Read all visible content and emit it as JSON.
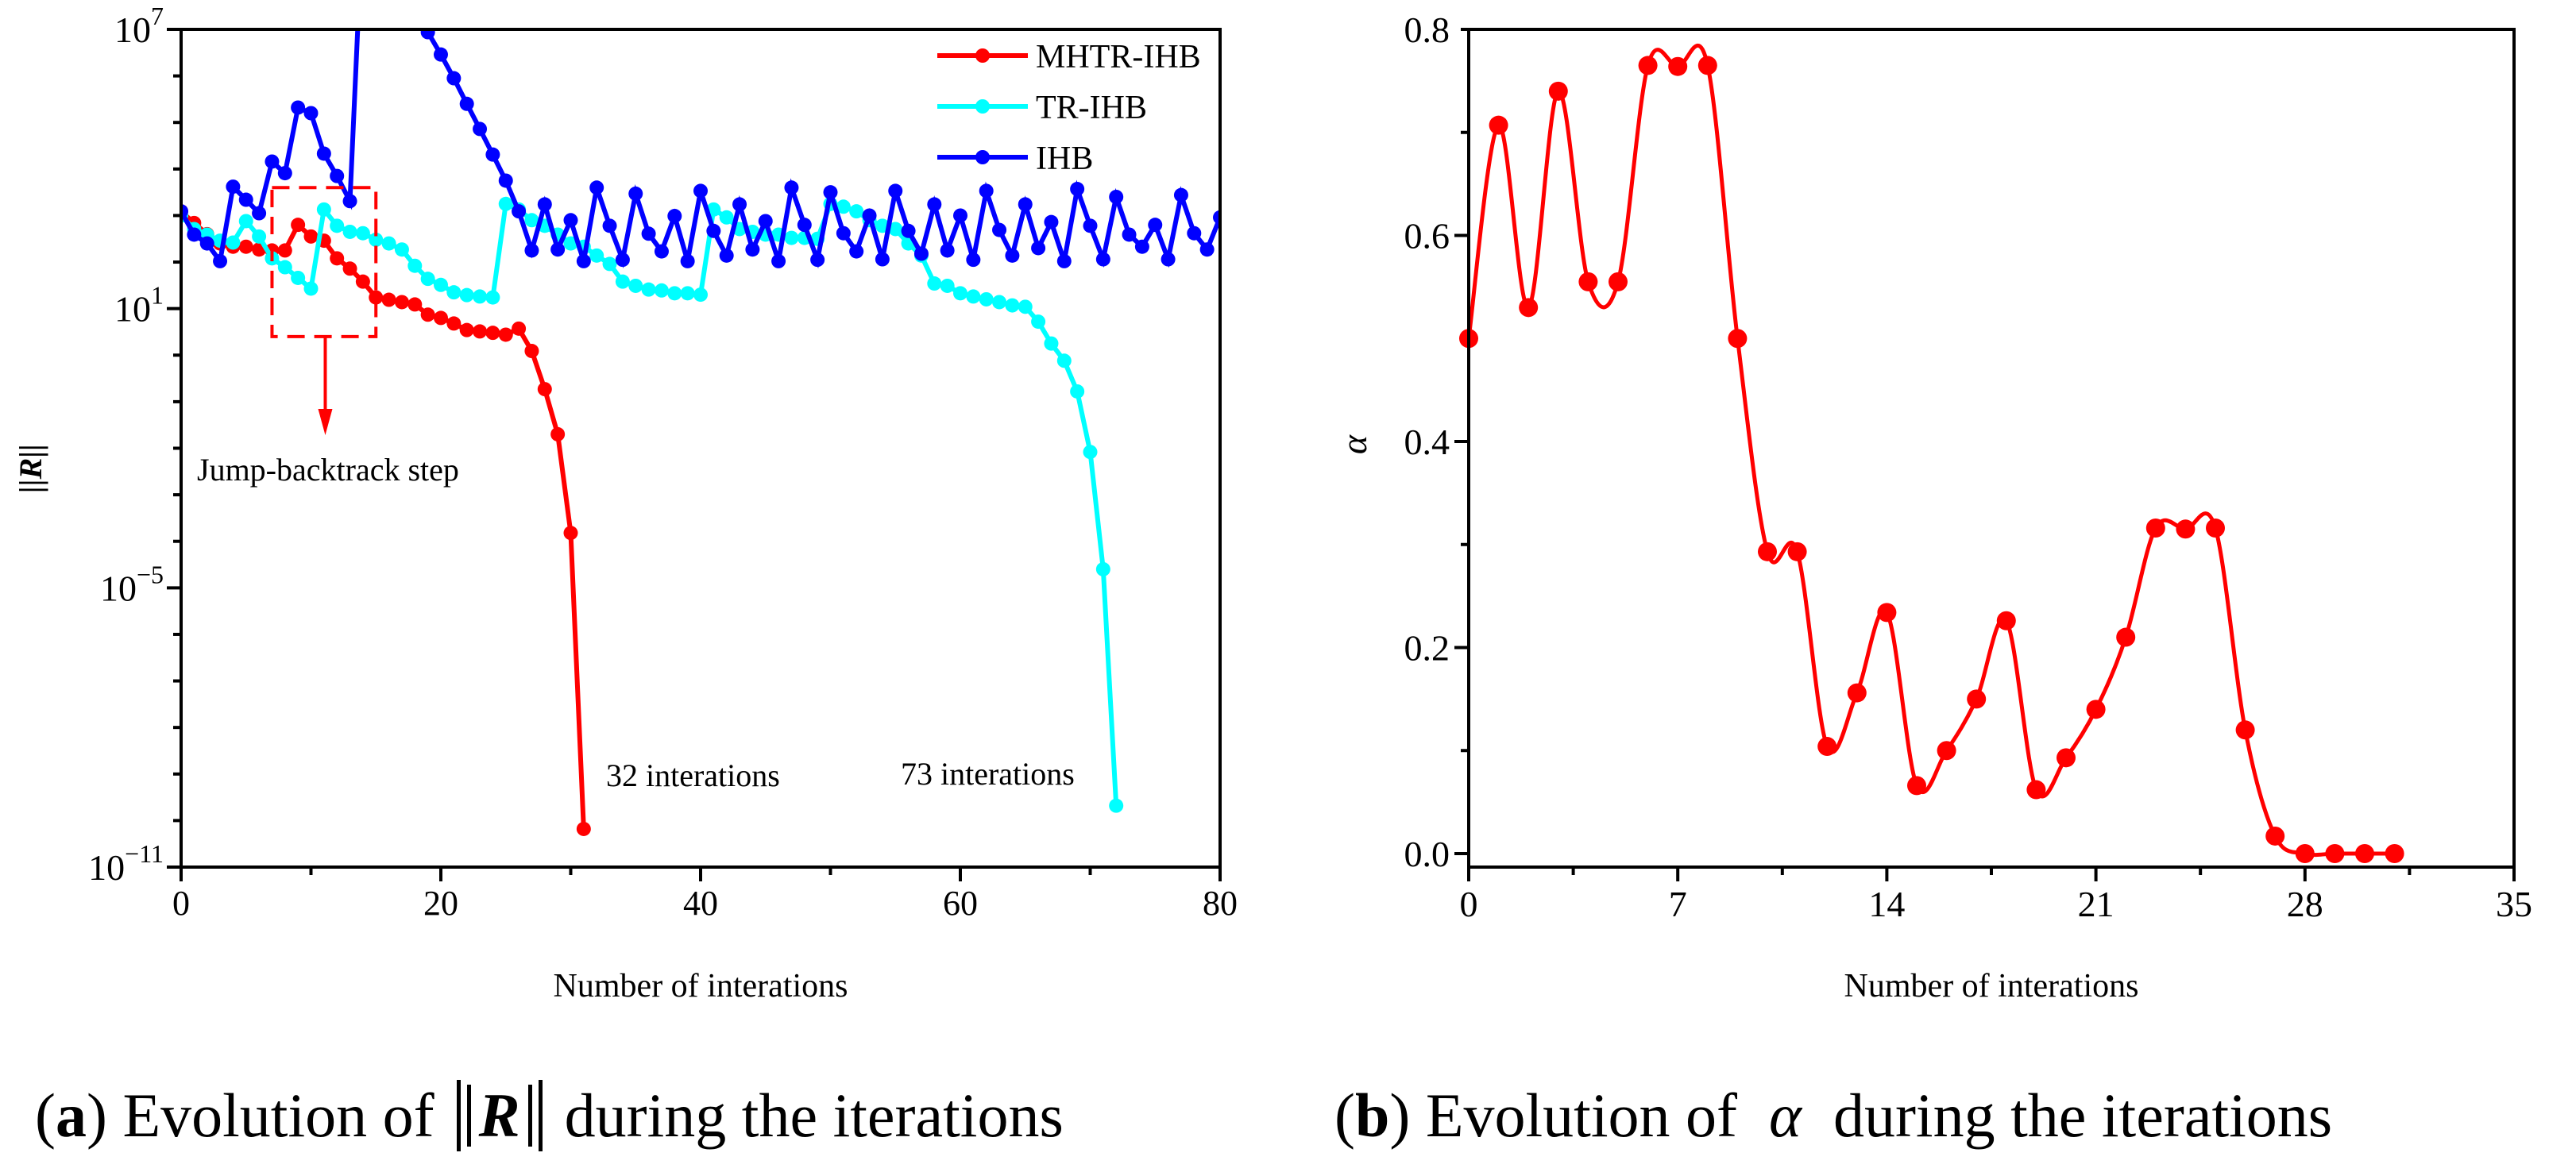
{
  "captions": {
    "a_label": "a",
    "a_prefix": "Evolution of",
    "a_symbol": "R",
    "a_suffix": "during the iterations",
    "b_label": "b",
    "b_prefix": "Evolution of",
    "b_symbol": "α",
    "b_suffix": "during the iterations"
  },
  "chart_data": [
    {
      "type": "line",
      "yscale": "log",
      "xlabel": "Number of interations",
      "ylabel": "||R||",
      "xlim": [
        0,
        80
      ],
      "ylim_log10": [
        -11,
        7
      ],
      "xticks": [
        "0",
        "20",
        "40",
        "60",
        "80"
      ],
      "xtick_values": [
        0,
        20,
        40,
        60,
        80
      ],
      "yticks": [
        {
          "base": "10",
          "exp": "7",
          "v": 7
        },
        {
          "base": "10",
          "exp": "1",
          "v": 1
        },
        {
          "base": "10",
          "exp": "−5",
          "v": -5
        },
        {
          "base": "10",
          "exp": "−11",
          "v": -11
        }
      ],
      "legend_position": "top-right",
      "series": [
        {
          "name": "MHTR-IHB",
          "color": "#ff0000",
          "x_start": 0,
          "log10_y": [
            3.09,
            2.84,
            2.6,
            2.4,
            2.33,
            2.33,
            2.27,
            2.25,
            2.25,
            2.8,
            2.55,
            2.46,
            2.08,
            1.86,
            1.58,
            1.24,
            1.19,
            1.14,
            1.09,
            0.87,
            0.8,
            0.68,
            0.54,
            0.51,
            0.48,
            0.44,
            0.57,
            0.09,
            -0.73,
            -1.7,
            -3.82,
            -10.18
          ]
        },
        {
          "name": "TR-IHB",
          "color": "#00ffff",
          "x_start": 0,
          "log10_y": [
            3.0,
            2.71,
            2.59,
            2.46,
            2.42,
            2.88,
            2.55,
            2.08,
            1.89,
            1.66,
            1.43,
            3.13,
            2.78,
            2.65,
            2.62,
            2.48,
            2.4,
            2.27,
            1.92,
            1.64,
            1.51,
            1.35,
            1.29,
            1.26,
            1.24,
            3.25,
            3.13,
            2.9,
            2.78,
            2.59,
            2.4,
            2.33,
            2.14,
            1.96,
            1.58,
            1.49,
            1.41,
            1.39,
            1.33,
            1.33,
            1.3,
            3.13,
            2.96,
            2.71,
            2.65,
            2.59,
            2.59,
            2.52,
            2.52,
            2.5,
            3.25,
            3.19,
            3.09,
            2.9,
            2.78,
            2.71,
            2.4,
            2.14,
            1.54,
            1.49,
            1.33,
            1.26,
            1.2,
            1.14,
            1.07,
            1.04,
            0.72,
            0.25,
            -0.12,
            -0.78,
            -2.08,
            -4.6,
            -9.68
          ]
        },
        {
          "name": "IHB",
          "color": "#0000ff",
          "x_start": 0,
          "log10_y": [
            3.09,
            2.59,
            2.4,
            2.02,
            3.62,
            3.34,
            3.05,
            4.16,
            3.91,
            5.32,
            5.2,
            4.33,
            3.85,
            3.31,
            9.5,
            10,
            9.5,
            8.5,
            7.6,
            6.94,
            6.46,
            5.95,
            5.4,
            4.86,
            4.31,
            3.75,
            3.09,
            2.25,
            3.24,
            2.27,
            2.9,
            2.02,
            3.6,
            2.78,
            2.05,
            3.47,
            2.61,
            2.23,
            2.99,
            2.02,
            3.53,
            2.67,
            2.14,
            3.24,
            2.27,
            2.88,
            2.02,
            3.6,
            2.8,
            2.05,
            3.5,
            2.62,
            2.23,
            3.0,
            2.06,
            3.53,
            2.67,
            2.18,
            3.24,
            2.25,
            3.0,
            2.05,
            3.53,
            2.69,
            2.14,
            3.24,
            2.3,
            2.86,
            2.02,
            3.57,
            2.78,
            2.06,
            3.4,
            2.59,
            2.33,
            2.8,
            2.06,
            3.44,
            2.62,
            2.27,
            2.96
          ]
        }
      ],
      "annotations": [
        {
          "text": "Jump-backtrack step",
          "color": "#ff0000",
          "box_x": [
            7,
            15
          ],
          "box_log10_y": [
            0.4,
            3.6
          ]
        },
        {
          "text": "32 interations",
          "color": "#ff0000"
        },
        {
          "text": "73 interations",
          "color": "#00ffff"
        }
      ]
    },
    {
      "type": "line",
      "smooth": true,
      "xlabel": "Number of interations",
      "ylabel": "α",
      "xlim": [
        0,
        35
      ],
      "ylim": [
        -0.026,
        0.8
      ],
      "xticks": [
        "0",
        "7",
        "14",
        "21",
        "28",
        "35"
      ],
      "xtick_values": [
        0,
        7,
        14,
        21,
        28,
        35
      ],
      "yticks": [
        "0.0",
        "0.2",
        "0.4",
        "0.6",
        "0.8"
      ],
      "ytick_values": [
        0,
        0.2,
        0.4,
        0.6,
        0.8
      ],
      "series": [
        {
          "name": "alpha",
          "color": "#ff0000",
          "x_start": 0,
          "values": [
            0.5,
            0.707,
            0.53,
            0.74,
            0.555,
            0.555,
            0.765,
            0.764,
            0.765,
            0.5,
            0.293,
            0.293,
            0.104,
            0.156,
            0.234,
            0.066,
            0.1,
            0.15,
            0.226,
            0.062,
            0.093,
            0.14,
            0.21,
            0.316,
            0.315,
            0.316,
            0.12,
            0.017,
            0.0,
            0.0,
            0.0,
            0.0
          ]
        }
      ]
    }
  ]
}
